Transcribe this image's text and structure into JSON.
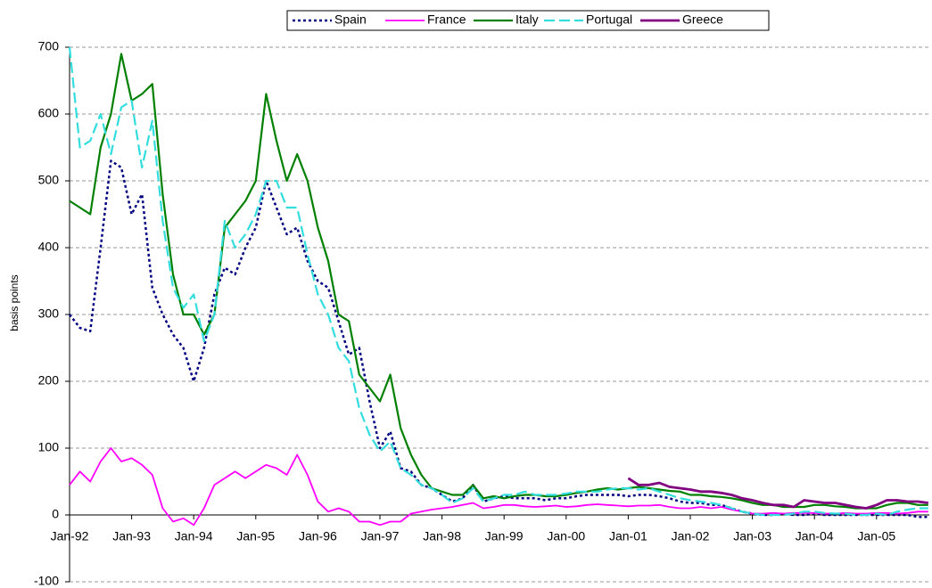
{
  "chart_data": {
    "type": "line",
    "y_label": "basis points",
    "categories": [
      "Jan-92",
      null,
      null,
      null,
      null,
      null,
      "Jan-93",
      null,
      null,
      null,
      null,
      null,
      "Jan-94",
      null,
      null,
      null,
      null,
      null,
      "Jan-95",
      null,
      null,
      null,
      null,
      null,
      "Jan-96",
      null,
      null,
      null,
      null,
      null,
      "Jan-97",
      null,
      null,
      null,
      null,
      null,
      "Jan-98",
      null,
      null,
      null,
      null,
      null,
      "Jan-99",
      null,
      null,
      null,
      null,
      null,
      "Jan-00",
      null,
      null,
      null,
      null,
      null,
      "Jan-01",
      null,
      null,
      null,
      null,
      null,
      "Jan-02",
      null,
      null,
      null,
      null,
      null,
      "Jan-03",
      null,
      null,
      null,
      null,
      null,
      "Jan-04",
      null,
      null,
      null,
      null,
      null,
      "Jan-05",
      null,
      null,
      null,
      null,
      null
    ],
    "ylim": [
      -100,
      700
    ],
    "yticks": [
      -100,
      0,
      100,
      200,
      300,
      400,
      500,
      600,
      700
    ],
    "grid": true,
    "legend": "top",
    "series": [
      {
        "name": "Spain",
        "color": "#000080",
        "values": [
          300,
          280,
          275,
          400,
          530,
          520,
          450,
          480,
          340,
          300,
          270,
          250,
          200,
          250,
          330,
          370,
          360,
          400,
          430,
          500,
          460,
          420,
          430,
          380,
          350,
          340,
          290,
          240,
          250,
          170,
          100,
          125,
          70,
          65,
          45,
          40,
          30,
          20,
          25,
          45,
          20,
          25,
          28,
          25,
          25,
          25,
          22,
          25,
          25,
          28,
          30,
          30,
          30,
          30,
          28,
          30,
          30,
          28,
          25,
          20,
          18,
          18,
          15,
          15,
          10,
          5,
          2,
          0,
          0,
          2,
          0,
          0,
          2,
          0,
          0,
          0,
          0,
          0,
          0,
          0,
          0,
          0,
          -3,
          -3
        ]
      },
      {
        "name": "France",
        "color": "#ff00ff",
        "values": [
          45,
          65,
          50,
          80,
          100,
          80,
          85,
          75,
          60,
          10,
          -10,
          -5,
          -15,
          10,
          45,
          55,
          65,
          55,
          65,
          75,
          70,
          60,
          90,
          60,
          20,
          5,
          10,
          5,
          -10,
          -10,
          -15,
          -10,
          -10,
          2,
          5,
          8,
          10,
          12,
          15,
          18,
          10,
          12,
          15,
          15,
          13,
          12,
          13,
          14,
          12,
          13,
          15,
          16,
          15,
          14,
          13,
          14,
          14,
          15,
          12,
          10,
          10,
          12,
          10,
          12,
          8,
          5,
          2,
          2,
          3,
          2,
          3,
          3,
          3,
          2,
          2,
          3,
          2,
          2,
          3,
          3,
          2,
          3,
          5,
          5
        ]
      },
      {
        "name": "Italy",
        "color": "#008000",
        "values": [
          470,
          460,
          450,
          550,
          600,
          690,
          620,
          630,
          645,
          480,
          360,
          300,
          300,
          270,
          300,
          430,
          450,
          470,
          500,
          630,
          560,
          500,
          540,
          500,
          430,
          380,
          300,
          290,
          210,
          190,
          170,
          210,
          130,
          90,
          60,
          40,
          35,
          30,
          30,
          45,
          25,
          28,
          25,
          28,
          30,
          30,
          28,
          28,
          30,
          33,
          35,
          38,
          40,
          38,
          40,
          42,
          40,
          38,
          36,
          35,
          30,
          30,
          28,
          27,
          25,
          22,
          18,
          15,
          15,
          12,
          12,
          12,
          15,
          15,
          13,
          12,
          10,
          10,
          10,
          15,
          18,
          18,
          15,
          15
        ]
      },
      {
        "name": "Portugal",
        "color": "#33dddd",
        "values": [
          700,
          550,
          560,
          600,
          540,
          610,
          620,
          520,
          590,
          440,
          340,
          310,
          330,
          260,
          300,
          440,
          400,
          420,
          450,
          500,
          500,
          460,
          460,
          390,
          330,
          300,
          250,
          230,
          160,
          120,
          95,
          110,
          70,
          60,
          45,
          40,
          30,
          18,
          25,
          40,
          20,
          25,
          30,
          30,
          35,
          30,
          30,
          30,
          32,
          35,
          35,
          35,
          38,
          40,
          40,
          38,
          40,
          35,
          30,
          25,
          22,
          20,
          18,
          15,
          10,
          5,
          2,
          0,
          0,
          0,
          2,
          5,
          5,
          3,
          2,
          2,
          0,
          0,
          2,
          0,
          5,
          8,
          10,
          10
        ]
      },
      {
        "name": "Greece",
        "color": "#800080",
        "values": [
          null,
          null,
          null,
          null,
          null,
          null,
          null,
          null,
          null,
          null,
          null,
          null,
          null,
          null,
          null,
          null,
          null,
          null,
          null,
          null,
          null,
          null,
          null,
          null,
          null,
          null,
          null,
          null,
          null,
          null,
          null,
          null,
          null,
          null,
          null,
          null,
          null,
          null,
          null,
          null,
          null,
          null,
          null,
          null,
          null,
          null,
          null,
          null,
          null,
          null,
          null,
          null,
          null,
          null,
          55,
          45,
          45,
          48,
          42,
          40,
          38,
          35,
          35,
          33,
          30,
          25,
          22,
          18,
          15,
          15,
          12,
          22,
          20,
          18,
          18,
          15,
          12,
          10,
          15,
          22,
          22,
          20,
          20,
          18
        ]
      }
    ]
  }
}
